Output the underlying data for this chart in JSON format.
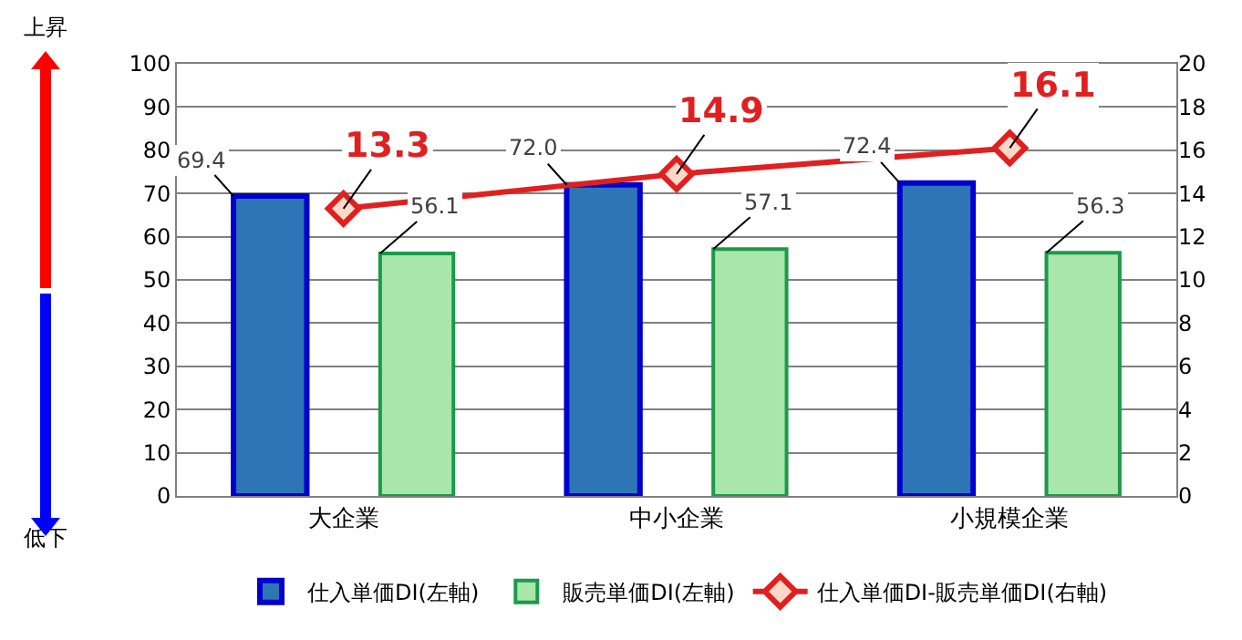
{
  "chart_data": {
    "type": "bar",
    "categories": [
      "大企業",
      "中小企業",
      "小規模企業"
    ],
    "series": [
      {
        "name": "仕入単価DI(左軸)",
        "color": "#2e75b6",
        "values": [
          69.4,
          72.0,
          72.4
        ],
        "value_labels": [
          "69.4",
          "72.0",
          "72.4"
        ]
      },
      {
        "name": "販売単価DI(左軸)",
        "color": "#a9e6a9",
        "values": [
          56.1,
          57.1,
          56.3
        ],
        "value_labels": [
          "56.1",
          "57.1",
          "56.3"
        ]
      },
      {
        "name": "仕入単価DI-販売単価DI(右軸)",
        "type": "line",
        "axis": "y2",
        "color": "#e02020",
        "marker": "diamond",
        "values": [
          13.3,
          14.9,
          16.1
        ],
        "value_labels": [
          "13.3",
          "14.9",
          "16.1"
        ]
      }
    ],
    "ylim": [
      0,
      100
    ],
    "yticks": [
      0,
      10,
      20,
      30,
      40,
      50,
      60,
      70,
      80,
      90,
      100
    ],
    "y2lim": [
      0,
      20
    ],
    "y2ticks": [
      0,
      2,
      4,
      6,
      8,
      10,
      12,
      14,
      16,
      18,
      20
    ],
    "grid": "y",
    "legend": "bottom",
    "annotations": [
      "上昇",
      "低下"
    ]
  }
}
